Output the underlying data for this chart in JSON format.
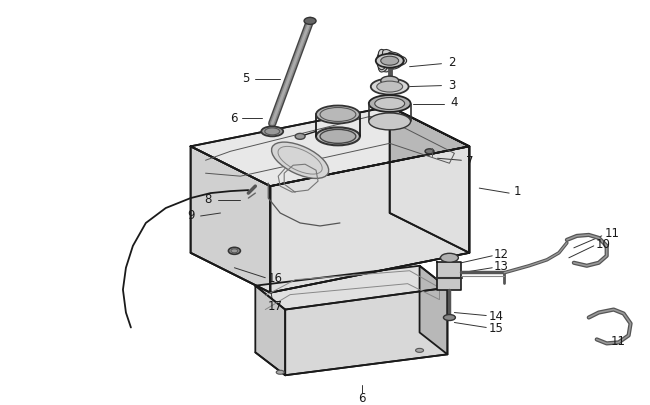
{
  "background_color": "#ffffff",
  "line_color": "#1a1a1a",
  "text_color": "#1a1a1a",
  "fig_width": 6.5,
  "fig_height": 4.06,
  "dpi": 100
}
